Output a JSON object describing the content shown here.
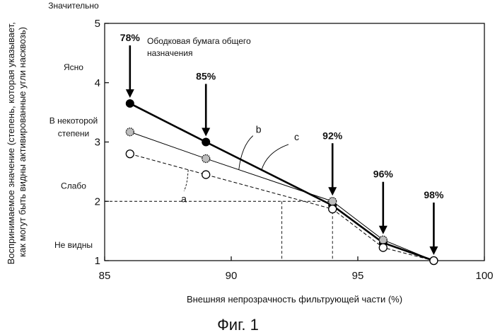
{
  "chart_data": {
    "type": "line",
    "title": "",
    "xlabel": "Внешняя непрозрачность фильтрующей части (%)",
    "ylabel": "Воспринимаемое значение (степень, которая указывает, как могут быть видны активированные угли насквозь)",
    "xlim": [
      85,
      100
    ],
    "ylim": [
      1,
      5
    ],
    "xticks": [
      85,
      90,
      95,
      100
    ],
    "yticks": [
      1,
      2,
      3,
      4,
      5
    ],
    "y_category_labels": [
      {
        "y": 5,
        "label": "Значительно"
      },
      {
        "y": 4,
        "label": "Ясно"
      },
      {
        "y": 3,
        "label": "В некоторой степени"
      },
      {
        "y": 2,
        "label": "Слабо"
      },
      {
        "y": 1,
        "label": "Не видны"
      }
    ],
    "grid": false,
    "series": [
      {
        "name": "c",
        "marker": "filled",
        "line": "thick-solid",
        "color": "#000000",
        "x": [
          86,
          89,
          94,
          96,
          98
        ],
        "y": [
          3.65,
          3.0,
          1.93,
          1.3,
          1.0
        ]
      },
      {
        "name": "b",
        "marker": "dotted",
        "line": "thin-solid",
        "color": "#000000",
        "x": [
          86,
          89,
          94,
          96,
          98
        ],
        "y": [
          3.17,
          2.72,
          2.0,
          1.35,
          1.0
        ]
      },
      {
        "name": "a",
        "marker": "open",
        "line": "dashed",
        "color": "#000000",
        "x": [
          86,
          89,
          94,
          96,
          98
        ],
        "y": [
          2.8,
          2.45,
          1.87,
          1.22,
          1.0
        ]
      }
    ],
    "opacity_annotations": [
      {
        "x": 86,
        "label": "78%"
      },
      {
        "x": 89,
        "label": "85%"
      },
      {
        "x": 94,
        "label": "92%"
      },
      {
        "x": 96,
        "label": "96%"
      },
      {
        "x": 98,
        "label": "98%"
      }
    ],
    "text_annotation": [
      "Ободковая бумага общего",
      "назначения"
    ],
    "reference_line": {
      "y": 2,
      "x_values": [
        92,
        94
      ]
    },
    "caption": "Фиг. 1"
  }
}
